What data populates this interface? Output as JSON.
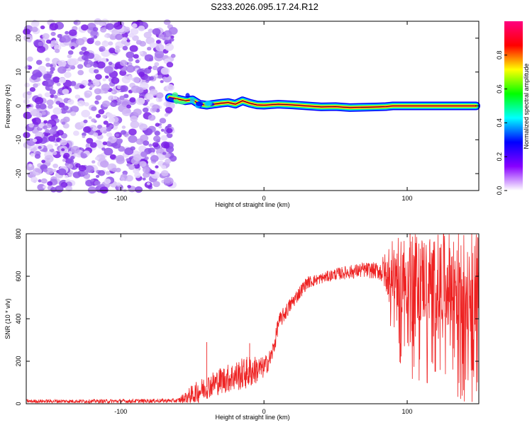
{
  "title": "S233.2026.095.17.24.R12",
  "chart_data": [
    {
      "type": "heatmap",
      "name": "spectrogram",
      "xlabel": "Height of straight line (km)",
      "ylabel": "Frequency (Hz)",
      "xlim": [
        -166,
        150
      ],
      "ylim": [
        -25,
        25
      ],
      "xticks": [
        -100,
        0,
        100
      ],
      "yticks": [
        -20,
        -10,
        0,
        10,
        20
      ],
      "noise_region": {
        "x": [
          -166,
          -63
        ],
        "description_value": "random low/medium amplitude speckle"
      },
      "signal_track": {
        "x": [
          -66,
          -60,
          -55,
          -50,
          -45,
          -40,
          -35,
          -30,
          -25,
          -20,
          -15,
          -10,
          -5,
          0,
          10,
          20,
          30,
          40,
          50,
          60,
          70,
          80,
          85,
          90,
          100,
          110,
          120,
          130,
          140,
          148
        ],
        "y": [
          2.5,
          2.0,
          1.5,
          1.8,
          0.5,
          0.2,
          0.5,
          0.8,
          1.0,
          0.5,
          1.5,
          0.8,
          0.3,
          0.2,
          0.5,
          0.3,
          0.0,
          -0.3,
          -0.2,
          -0.5,
          -0.4,
          -0.3,
          -0.2,
          0.0,
          0.0,
          0.0,
          0.0,
          0.0,
          0.0,
          0.0
        ]
      },
      "colorbar": {
        "label": "Normalized spectral amplitude",
        "range": [
          0.0,
          1.0
        ],
        "ticks": [
          "0.0",
          "0.2",
          "0.4",
          "0.6",
          "0.8"
        ],
        "colors": [
          "#ffffff",
          "#8800ff",
          "#0000ff",
          "#00ffff",
          "#00ff00",
          "#ffff00",
          "#ff0000",
          "#ff0080"
        ]
      }
    },
    {
      "type": "line",
      "name": "snr",
      "xlabel": "Height of straight line (km)",
      "ylabel": "SNR (10 * v/v)",
      "xlim": [
        -166,
        150
      ],
      "ylim": [
        0,
        800
      ],
      "xticks": [
        -100,
        0,
        100
      ],
      "yticks": [
        0,
        200,
        400,
        600,
        800
      ],
      "color": "#ee2222",
      "trend": {
        "x": [
          -166,
          -100,
          -60,
          -50,
          -40,
          -30,
          -20,
          -10,
          0,
          5,
          8,
          10,
          20,
          30,
          50,
          70,
          90,
          100,
          120,
          150
        ],
        "y": [
          12,
          12,
          15,
          40,
          80,
          110,
          130,
          150,
          170,
          220,
          300,
          380,
          480,
          570,
          610,
          630,
          620,
          600,
          580,
          570
        ]
      },
      "noise_amplitude": {
        "x": [
          -166,
          -60,
          -50,
          -10,
          0,
          10,
          40,
          80,
          90,
          100,
          120,
          150
        ],
        "y": [
          8,
          10,
          50,
          80,
          50,
          40,
          25,
          40,
          150,
          200,
          220,
          250
        ]
      },
      "spikes": [
        {
          "x": -40,
          "y": 290
        },
        {
          "x": -10,
          "y": 285
        },
        {
          "x": 102,
          "y": 800
        }
      ]
    }
  ]
}
